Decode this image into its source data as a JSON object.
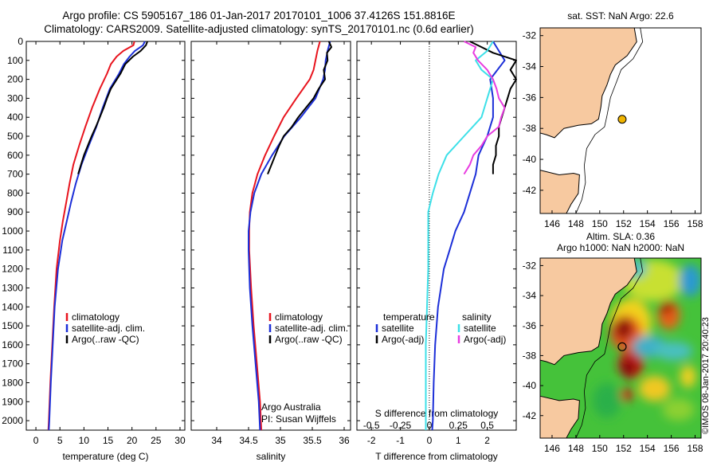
{
  "title_line1": "Argo profile: CS 5905167_186 01-Jan-2017 20170101_1006 37.4126S 151.8816E",
  "title_line2": "Climatology: CARS2009. Satellite-adjusted climatology: synTS_20170101.nc (0.6d earlier)",
  "depth_ticks": [
    "0",
    "100",
    "200",
    "300",
    "400",
    "500",
    "600",
    "700",
    "800",
    "900",
    "1000",
    "1100",
    "1200",
    "1300",
    "1400",
    "1500",
    "1600",
    "1700",
    "1800",
    "1900",
    "2000"
  ],
  "colors": {
    "climatology": "#e8141e",
    "satellite": "#1c2fd8",
    "argo": "#000000",
    "satellite_s": "#3de0e8",
    "argo_s": "#e83ce0",
    "land": "#f7c9a0",
    "map_border": "#000000"
  },
  "chart_data": [
    {
      "type": "line",
      "xlabel": "temperature (deg C)",
      "xlim": [
        -2,
        31
      ],
      "ylim": [
        0,
        2050
      ],
      "xticks": [
        "0",
        "5",
        "10",
        "15",
        "20",
        "25",
        "30"
      ],
      "legend": [
        "climatology",
        "satellite-adj. clim.",
        "Argo(..raw -QC)"
      ],
      "series": [
        {
          "name": "climatology",
          "depth": [
            0,
            20,
            50,
            80,
            120,
            170,
            250,
            350,
            450,
            550,
            650,
            750,
            850,
            950,
            1050,
            1200,
            1400,
            1600,
            1800,
            2000,
            2050
          ],
          "values": [
            20.5,
            20.3,
            18.2,
            16.8,
            15.6,
            14.8,
            13.3,
            11.7,
            10.3,
            9.0,
            7.8,
            7.0,
            6.3,
            5.6,
            5.0,
            4.3,
            3.8,
            3.4,
            3.0,
            2.7,
            2.6
          ]
        },
        {
          "name": "satellite-adj. clim.",
          "depth": [
            0,
            20,
            50,
            80,
            120,
            170,
            250,
            350,
            450,
            550,
            650,
            750,
            850,
            950,
            1050,
            1200,
            1400,
            1600,
            1800,
            2000,
            2050
          ],
          "values": [
            22.7,
            22.3,
            20.6,
            19.5,
            18.3,
            17.3,
            15.4,
            13.9,
            12.6,
            11.0,
            9.5,
            8.3,
            7.3,
            6.4,
            5.5,
            4.6,
            3.9,
            3.5,
            3.1,
            2.8,
            2.7
          ]
        },
        {
          "name": "Argo(..raw -QC)",
          "depth": [
            0,
            20,
            50,
            80,
            120,
            170,
            250,
            300,
            350,
            400,
            450,
            500,
            550,
            600,
            650,
            700
          ],
          "values": [
            23.2,
            22.9,
            21.8,
            20.2,
            18.6,
            17.6,
            15.6,
            14.8,
            14.1,
            13.3,
            12.5,
            11.6,
            10.8,
            10.0,
            9.4,
            8.8
          ]
        }
      ]
    },
    {
      "type": "line",
      "xlabel": "salinity",
      "xlim": [
        33.6,
        36.1
      ],
      "ylim": [
        0,
        2050
      ],
      "xticks": [
        "34",
        "34.5",
        "35",
        "35.5",
        "36"
      ],
      "legend": [
        "climatology",
        "satellite-adj. clim.",
        "Argo(..raw -QC)"
      ],
      "annotation": [
        "Argo Australia",
        "PI: Susan Wijffels"
      ],
      "series": [
        {
          "name": "climatology",
          "depth": [
            0,
            50,
            100,
            150,
            200,
            300,
            400,
            500,
            600,
            700,
            800,
            900,
            1000,
            1100,
            1300,
            1500,
            1700,
            1900,
            2050
          ],
          "values": [
            35.62,
            35.58,
            35.55,
            35.52,
            35.46,
            35.25,
            35.05,
            34.9,
            34.76,
            34.64,
            34.56,
            34.52,
            34.51,
            34.51,
            34.54,
            34.58,
            34.63,
            34.68,
            34.7
          ]
        },
        {
          "name": "satellite-adj. clim.",
          "depth": [
            0,
            50,
            100,
            150,
            200,
            300,
            400,
            500,
            600,
            700,
            800,
            900,
            1000,
            1100,
            1300,
            1500,
            1700,
            1900,
            2050
          ],
          "values": [
            35.78,
            35.74,
            35.71,
            35.7,
            35.67,
            35.55,
            35.32,
            35.06,
            34.87,
            34.7,
            34.59,
            34.53,
            34.5,
            34.5,
            34.52,
            34.56,
            34.61,
            34.66,
            34.68
          ]
        },
        {
          "name": "Argo(..raw -QC)",
          "depth": [
            0,
            30,
            60,
            100,
            150,
            200,
            250,
            300,
            350,
            400,
            450,
            500,
            550,
            600,
            650,
            700
          ],
          "values": [
            35.76,
            35.8,
            35.73,
            35.74,
            35.68,
            35.7,
            35.6,
            35.52,
            35.4,
            35.28,
            35.18,
            35.05,
            34.98,
            34.92,
            34.86,
            34.8
          ]
        }
      ]
    },
    {
      "type": "line",
      "xlabel": "T difference from climatology",
      "xlabel_top": "S difference from climatology",
      "xlim": [
        -2.5,
        3.0
      ],
      "ylim": [
        0,
        2050
      ],
      "xticks": [
        "-2",
        "-1",
        "0",
        "1",
        "2"
      ],
      "xticks_top": [
        "-0.5",
        "-0.25",
        "0",
        "0.25",
        "0.5"
      ],
      "legend": [
        "temperature",
        "satellite",
        "Argo(-adj)",
        "salinity",
        "satellite",
        "Argo(-adj)"
      ],
      "series": [
        {
          "name": "satellite",
          "variable": "temperature",
          "depth": [
            0,
            50,
            100,
            200,
            300,
            400,
            500,
            600,
            700,
            800,
            900,
            1000,
            1100,
            1200,
            1400,
            1600,
            1800,
            2000,
            2050
          ],
          "values": [
            2.2,
            2.4,
            2.6,
            2.1,
            2.2,
            2.2,
            2.0,
            1.7,
            1.6,
            1.4,
            1.2,
            0.9,
            0.7,
            0.5,
            0.3,
            0.2,
            0.15,
            0.12,
            0.1
          ]
        },
        {
          "name": "Argo(-adj)",
          "variable": "temperature",
          "depth": [
            0,
            30,
            60,
            100,
            150,
            200,
            250,
            300,
            350,
            400,
            450,
            500,
            550,
            600,
            650,
            700
          ],
          "values": [
            1.4,
            1.8,
            2.2,
            3.0,
            2.8,
            3.0,
            2.8,
            2.7,
            2.6,
            2.5,
            2.4,
            2.4,
            2.3,
            2.3,
            2.2,
            2.2
          ]
        },
        {
          "name": "satellite",
          "variable": "salinity",
          "depth": [
            0,
            50,
            100,
            150,
            200,
            300,
            400,
            500,
            600,
            700,
            800,
            900,
            1000,
            1100,
            1200,
            1400,
            1600,
            1800,
            2000,
            2050
          ],
          "values": [
            0.55,
            0.5,
            0.4,
            0.45,
            0.55,
            0.5,
            0.45,
            0.3,
            0.15,
            0.08,
            0.03,
            -0.01,
            -0.01,
            -0.01,
            -0.01,
            -0.02,
            -0.03,
            -0.03,
            -0.03,
            -0.03
          ]
        },
        {
          "name": "Argo(-adj)",
          "variable": "salinity",
          "depth": [
            0,
            30,
            60,
            100,
            150,
            200,
            250,
            300,
            350,
            400,
            450,
            500,
            550,
            600,
            650,
            700
          ],
          "values": [
            0.3,
            0.4,
            0.38,
            0.42,
            0.5,
            0.55,
            0.58,
            0.6,
            0.65,
            0.62,
            0.6,
            0.5,
            0.45,
            0.38,
            0.35,
            0.3
          ]
        }
      ]
    },
    {
      "type": "scatter",
      "title": "sat. SST: NaN Argo: 22.6",
      "xlim": [
        145,
        158.5
      ],
      "ylim": [
        -43.5,
        -31.5
      ],
      "xticks": [
        "146",
        "148",
        "150",
        "152",
        "154",
        "156",
        "158"
      ],
      "yticks": [
        "-32",
        "-34",
        "-36",
        "-38",
        "-40",
        "-42"
      ],
      "points": [
        {
          "lon": 151.88,
          "lat": -37.41
        }
      ]
    },
    {
      "type": "heatmap",
      "title": [
        "Altim. SLA: 0.36",
        "Argo h1000: NaN h2000: NaN"
      ],
      "xlim": [
        145,
        158.5
      ],
      "ylim": [
        -43.5,
        -31.5
      ],
      "xticks": [
        "146",
        "148",
        "150",
        "152",
        "154",
        "156",
        "158"
      ],
      "yticks": [
        "-32",
        "-34",
        "-36",
        "-38",
        "-40",
        "-42"
      ],
      "points": [
        {
          "lon": 151.88,
          "lat": -37.41
        }
      ],
      "side_label": "©IMOS 08-Jan-2017 20:40:23"
    }
  ]
}
